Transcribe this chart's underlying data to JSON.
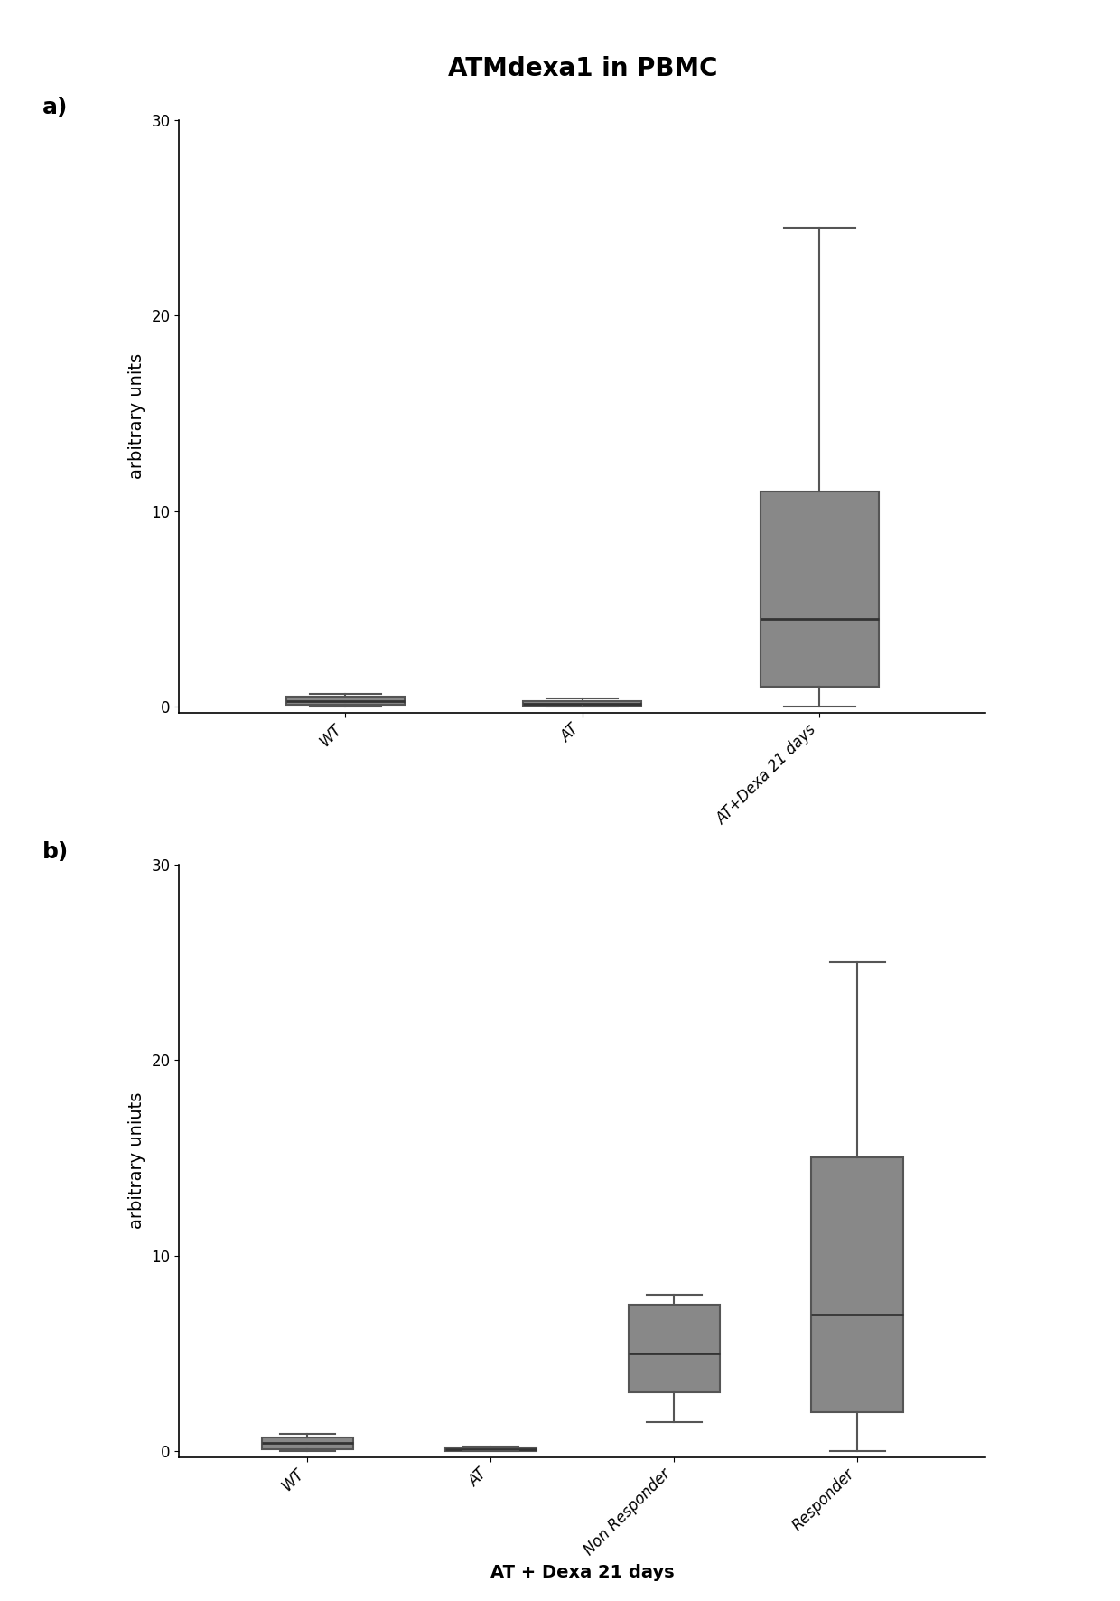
{
  "title": "ATMdexa1 in PBMC",
  "title_fontsize": 20,
  "panel_a_label": "a)",
  "panel_b_label": "b)",
  "panel_a_ylabel": "arbitrary units",
  "panel_b_ylabel": "arbitrary uniuts",
  "panel_b_xlabel": "AT + Dexa 21 days",
  "panel_a_categories": [
    "WT",
    "AT",
    "AT+Dexa 21 days"
  ],
  "panel_b_categories": [
    "WT",
    "AT",
    "Non Responder",
    "Responder"
  ],
  "panel_a_yticks": [
    0,
    10,
    20,
    30
  ],
  "panel_b_yticks": [
    0,
    10,
    20,
    30
  ],
  "ylim_a": [
    -0.3,
    30
  ],
  "ylim_b": [
    -0.3,
    30
  ],
  "box_color": "#555555",
  "box_facecolor": "#888888",
  "panel_a_boxes": [
    {
      "q1": 0.1,
      "median": 0.3,
      "q3": 0.5,
      "whislo": 0.0,
      "whishi": 0.65
    },
    {
      "q1": 0.05,
      "median": 0.15,
      "q3": 0.3,
      "whislo": 0.0,
      "whishi": 0.4
    },
    {
      "q1": 1.0,
      "median": 4.5,
      "q3": 11.0,
      "whislo": 0.0,
      "whishi": 24.5
    }
  ],
  "panel_b_boxes": [
    {
      "q1": 0.1,
      "median": 0.4,
      "q3": 0.7,
      "whislo": 0.0,
      "whishi": 0.9
    },
    {
      "q1": 0.02,
      "median": 0.1,
      "q3": 0.2,
      "whislo": 0.0,
      "whishi": 0.25
    },
    {
      "q1": 3.0,
      "median": 5.0,
      "q3": 7.5,
      "whislo": 1.5,
      "whishi": 8.0
    },
    {
      "q1": 2.0,
      "median": 7.0,
      "q3": 15.0,
      "whislo": 0.0,
      "whishi": 25.0
    }
  ],
  "label_fontsize": 14,
  "tick_fontsize": 12,
  "panel_label_fontsize": 18,
  "box_width": 0.5,
  "linewidth": 1.5,
  "background_color": "#ffffff"
}
